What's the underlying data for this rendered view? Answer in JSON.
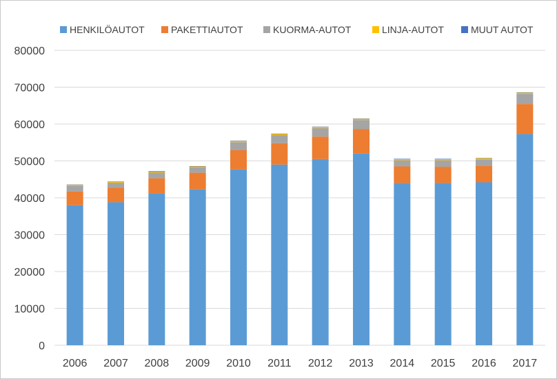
{
  "chart_data": {
    "type": "bar",
    "stacked": true,
    "categories": [
      "2006",
      "2007",
      "2008",
      "2009",
      "2010",
      "2011",
      "2012",
      "2013",
      "2014",
      "2015",
      "2016",
      "2017"
    ],
    "series": [
      {
        "name": "HENKILÖAUTOT",
        "color": "#5b9bd5",
        "values": [
          38000,
          38800,
          41200,
          42300,
          47700,
          49000,
          50500,
          52000,
          44000,
          44000,
          44200,
          57300
        ]
      },
      {
        "name": "PAKETTIAUTOT",
        "color": "#ed7d31",
        "values": [
          3700,
          3900,
          4100,
          4500,
          5200,
          5800,
          6100,
          6600,
          4500,
          4400,
          4400,
          8100
        ]
      },
      {
        "name": "KUORMA-AUTOT",
        "color": "#a5a5a5",
        "values": [
          1600,
          1400,
          1500,
          1500,
          2200,
          2200,
          2300,
          2500,
          1700,
          1800,
          1800,
          2800
        ]
      },
      {
        "name": "LINJA-AUTOT",
        "color": "#ffc000",
        "values": [
          200,
          200,
          200,
          200,
          300,
          300,
          300,
          300,
          300,
          300,
          300,
          300
        ]
      },
      {
        "name": "MUUT AUTOT",
        "color": "#4472c4",
        "values": [
          100,
          100,
          200,
          100,
          100,
          100,
          100,
          100,
          100,
          100,
          100,
          100
        ]
      }
    ],
    "ylim": [
      0,
      80000
    ],
    "yticks": [
      "0",
      "10000",
      "20000",
      "30000",
      "40000",
      "50000",
      "60000",
      "70000",
      "80000"
    ],
    "grid": true,
    "legend": "top"
  }
}
